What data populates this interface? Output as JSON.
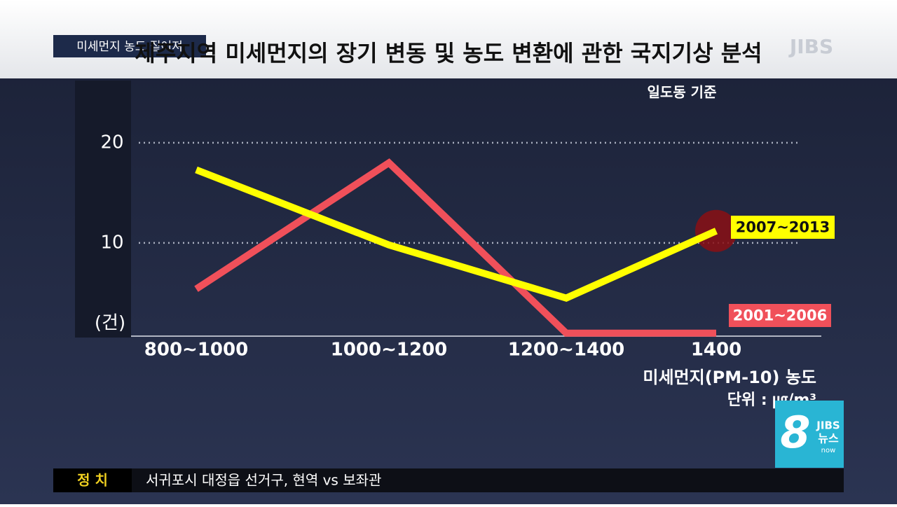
{
  "header": {
    "tag": "미세먼지 농도 짙어져",
    "logo": "JIBS"
  },
  "chart_data": {
    "type": "line",
    "title": "제주지역 미세먼지의 장기 변동 및 농도 변환에 관한 국지기상 분석",
    "subtitle": "일도동 기준",
    "y_label": "(건)",
    "x_label": "미세먼지(PM-10) 농도",
    "unit_note": "단위 : ㎍/m³",
    "categories": [
      "800~1000",
      "1000~1200",
      "1200~1400",
      "1400"
    ],
    "series": [
      {
        "name": "2007~2013",
        "color": "#ffff00",
        "values": [
          17.3,
          9.8,
          4.5,
          11.2
        ]
      },
      {
        "name": "2001~2006",
        "color": "#f0505a",
        "values": [
          5.4,
          18,
          1,
          1
        ]
      }
    ],
    "ylim": [
      0,
      26
    ],
    "yticks": [
      10,
      20
    ],
    "grid": true
  },
  "badge": {
    "number": "8",
    "brand": "JIBS",
    "label": "뉴스",
    "sub": "now"
  },
  "ticker": {
    "category": "정 치",
    "text": "서귀포시 대정읍 선거구, 현역 vs 보좌관"
  }
}
